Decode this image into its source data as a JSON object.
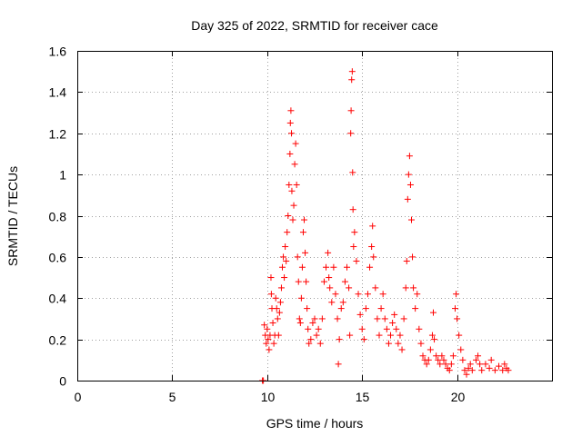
{
  "chart_data": {
    "type": "scatter",
    "title": "Day 325 of 2022, SRMTID for receiver cace",
    "xlabel": "GPS time / hours",
    "ylabel": "SRMTID / TECUs",
    "xlim": [
      0,
      25
    ],
    "ylim": [
      0,
      1.6
    ],
    "x_ticks": [
      0,
      5,
      10,
      15,
      20
    ],
    "x_tick_labels": [
      "0",
      "5",
      "10",
      "15",
      "20"
    ],
    "y_ticks": [
      0,
      0.2,
      0.4,
      0.6,
      0.8,
      1.0,
      1.2,
      1.4,
      1.6
    ],
    "y_tick_labels": [
      "0",
      "0.2",
      "0.4",
      "0.6",
      "0.8",
      "1",
      "1.2",
      "1.4",
      "1.6"
    ],
    "grid": true,
    "marker": "plus",
    "colors": {
      "series": "#ff0000",
      "grid": "#a0a0a0",
      "frame": "#000000"
    },
    "series": [
      {
        "name": "SRMTID",
        "points": [
          [
            9.75,
            0.0
          ],
          [
            9.8,
            0.0
          ],
          [
            9.85,
            0.27
          ],
          [
            9.9,
            0.22
          ],
          [
            9.95,
            0.18
          ],
          [
            10.0,
            0.25
          ],
          [
            10.05,
            0.2
          ],
          [
            10.1,
            0.15
          ],
          [
            10.15,
            0.22
          ],
          [
            10.2,
            0.5
          ],
          [
            10.22,
            0.42
          ],
          [
            10.25,
            0.35
          ],
          [
            10.3,
            0.28
          ],
          [
            10.35,
            0.18
          ],
          [
            10.4,
            0.22
          ],
          [
            10.45,
            0.4
          ],
          [
            10.5,
            0.35
          ],
          [
            10.55,
            0.3
          ],
          [
            10.6,
            0.22
          ],
          [
            10.65,
            0.33
          ],
          [
            10.7,
            0.38
          ],
          [
            10.75,
            0.45
          ],
          [
            10.8,
            0.55
          ],
          [
            10.85,
            0.6
          ],
          [
            10.9,
            0.5
          ],
          [
            10.95,
            0.65
          ],
          [
            11.0,
            0.58
          ],
          [
            11.05,
            0.72
          ],
          [
            11.1,
            0.8
          ],
          [
            11.15,
            0.95
          ],
          [
            11.2,
            1.1
          ],
          [
            11.22,
            1.25
          ],
          [
            11.25,
            1.31
          ],
          [
            11.28,
            1.2
          ],
          [
            11.3,
            0.92
          ],
          [
            11.35,
            0.78
          ],
          [
            11.4,
            0.85
          ],
          [
            11.45,
            1.05
          ],
          [
            11.5,
            1.15
          ],
          [
            11.55,
            0.95
          ],
          [
            11.6,
            0.6
          ],
          [
            11.65,
            0.48
          ],
          [
            11.7,
            0.3
          ],
          [
            11.75,
            0.28
          ],
          [
            11.8,
            0.4
          ],
          [
            11.85,
            0.55
          ],
          [
            11.9,
            0.72
          ],
          [
            11.95,
            0.78
          ],
          [
            12.0,
            0.62
          ],
          [
            12.05,
            0.48
          ],
          [
            12.1,
            0.35
          ],
          [
            12.15,
            0.25
          ],
          [
            12.2,
            0.18
          ],
          [
            12.3,
            0.2
          ],
          [
            12.4,
            0.28
          ],
          [
            12.5,
            0.3
          ],
          [
            12.6,
            0.22
          ],
          [
            12.7,
            0.25
          ],
          [
            12.8,
            0.18
          ],
          [
            12.9,
            0.3
          ],
          [
            13.0,
            0.48
          ],
          [
            13.1,
            0.55
          ],
          [
            13.2,
            0.62
          ],
          [
            13.25,
            0.5
          ],
          [
            13.3,
            0.45
          ],
          [
            13.4,
            0.38
          ],
          [
            13.5,
            0.55
          ],
          [
            13.6,
            0.42
          ],
          [
            13.7,
            0.3
          ],
          [
            13.75,
            0.08
          ],
          [
            13.8,
            0.2
          ],
          [
            13.9,
            0.35
          ],
          [
            14.0,
            0.38
          ],
          [
            14.1,
            0.48
          ],
          [
            14.2,
            0.55
          ],
          [
            14.3,
            0.45
          ],
          [
            14.35,
            0.22
          ],
          [
            14.4,
            1.2
          ],
          [
            14.42,
            1.31
          ],
          [
            14.45,
            1.46
          ],
          [
            14.48,
            1.5
          ],
          [
            14.5,
            1.01
          ],
          [
            14.52,
            0.83
          ],
          [
            14.55,
            0.65
          ],
          [
            14.6,
            0.72
          ],
          [
            14.7,
            0.58
          ],
          [
            14.8,
            0.42
          ],
          [
            14.9,
            0.32
          ],
          [
            15.0,
            0.25
          ],
          [
            15.1,
            0.2
          ],
          [
            15.2,
            0.35
          ],
          [
            15.3,
            0.42
          ],
          [
            15.4,
            0.55
          ],
          [
            15.5,
            0.65
          ],
          [
            15.55,
            0.75
          ],
          [
            15.6,
            0.6
          ],
          [
            15.7,
            0.45
          ],
          [
            15.8,
            0.3
          ],
          [
            15.9,
            0.22
          ],
          [
            16.0,
            0.35
          ],
          [
            16.1,
            0.42
          ],
          [
            16.2,
            0.3
          ],
          [
            16.3,
            0.25
          ],
          [
            16.4,
            0.18
          ],
          [
            16.5,
            0.22
          ],
          [
            16.6,
            0.28
          ],
          [
            16.7,
            0.32
          ],
          [
            16.8,
            0.25
          ],
          [
            16.9,
            0.18
          ],
          [
            17.0,
            0.22
          ],
          [
            17.1,
            0.15
          ],
          [
            17.2,
            0.3
          ],
          [
            17.3,
            0.45
          ],
          [
            17.35,
            0.58
          ],
          [
            17.4,
            0.88
          ],
          [
            17.45,
            1.0
          ],
          [
            17.5,
            1.09
          ],
          [
            17.55,
            0.95
          ],
          [
            17.6,
            0.78
          ],
          [
            17.65,
            0.6
          ],
          [
            17.7,
            0.45
          ],
          [
            17.8,
            0.35
          ],
          [
            17.9,
            0.42
          ],
          [
            18.0,
            0.25
          ],
          [
            18.1,
            0.18
          ],
          [
            18.2,
            0.12
          ],
          [
            18.3,
            0.1
          ],
          [
            18.4,
            0.08
          ],
          [
            18.5,
            0.1
          ],
          [
            18.6,
            0.15
          ],
          [
            18.7,
            0.22
          ],
          [
            18.75,
            0.33
          ],
          [
            18.8,
            0.2
          ],
          [
            18.9,
            0.12
          ],
          [
            19.0,
            0.1
          ],
          [
            19.1,
            0.08
          ],
          [
            19.2,
            0.12
          ],
          [
            19.3,
            0.1
          ],
          [
            19.4,
            0.08
          ],
          [
            19.5,
            0.06
          ],
          [
            19.6,
            0.05
          ],
          [
            19.7,
            0.08
          ],
          [
            19.8,
            0.12
          ],
          [
            19.9,
            0.35
          ],
          [
            19.95,
            0.42
          ],
          [
            20.0,
            0.3
          ],
          [
            20.1,
            0.22
          ],
          [
            20.2,
            0.15
          ],
          [
            20.3,
            0.1
          ],
          [
            20.4,
            0.05
          ],
          [
            20.5,
            0.03
          ],
          [
            20.6,
            0.06
          ],
          [
            20.7,
            0.08
          ],
          [
            20.8,
            0.05
          ],
          [
            21.0,
            0.1
          ],
          [
            21.1,
            0.12
          ],
          [
            21.2,
            0.08
          ],
          [
            21.3,
            0.05
          ],
          [
            21.5,
            0.08
          ],
          [
            21.7,
            0.06
          ],
          [
            21.8,
            0.1
          ],
          [
            22.0,
            0.05
          ],
          [
            22.2,
            0.07
          ],
          [
            22.4,
            0.05
          ],
          [
            22.5,
            0.08
          ],
          [
            22.6,
            0.06
          ],
          [
            22.7,
            0.05
          ]
        ]
      }
    ]
  }
}
